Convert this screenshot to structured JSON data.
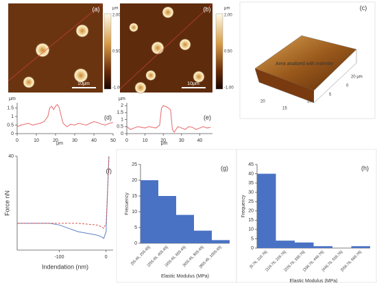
{
  "images": [
    {
      "label": "(a)",
      "unit": "μm",
      "colorbar_ticks": [
        "2.00",
        "0.50",
        "-1.00"
      ],
      "scale_bar": "10μm"
    },
    {
      "label": "(b)",
      "unit": "μm",
      "colorbar_ticks": [
        "2.00",
        "0.50",
        "-1.00"
      ],
      "scale_bar": "10μm"
    },
    {
      "label": "(c)",
      "annotation": "Area analized with indenter",
      "axis_ticks": [
        "20",
        "15",
        "10",
        "5",
        "0",
        "20 μm"
      ]
    }
  ],
  "chart_data": [
    {
      "type": "line",
      "title": "(d)",
      "ylabel": "μm",
      "xlabel": "μm",
      "color": "#e8676a",
      "x": [
        0,
        2,
        4,
        6,
        8,
        10,
        12,
        14,
        16,
        17,
        18,
        19,
        20,
        21,
        22,
        23,
        24,
        26,
        28,
        30,
        32,
        34,
        36,
        38,
        40,
        42,
        44,
        46,
        48,
        50
      ],
      "values": [
        0.4,
        0.5,
        0.55,
        0.6,
        0.5,
        0.55,
        0.6,
        0.7,
        1.0,
        1.5,
        1.6,
        1.4,
        1.6,
        1.7,
        1.5,
        1.0,
        0.6,
        0.4,
        0.55,
        0.5,
        0.6,
        0.55,
        0.5,
        0.6,
        0.7,
        0.65,
        0.55,
        0.5,
        0.6,
        0.65
      ],
      "xlim": [
        0,
        50
      ],
      "xticks": [
        0,
        10,
        20,
        30,
        40,
        50
      ],
      "ylim": [
        0,
        1.8
      ],
      "yticks": [
        0,
        0.5,
        1,
        1.5
      ]
    },
    {
      "type": "line",
      "title": "(e)",
      "ylabel": "μm",
      "xlabel": "μm",
      "color": "#e8676a",
      "x": [
        0,
        2,
        4,
        6,
        8,
        10,
        12,
        14,
        16,
        18,
        19,
        20,
        22,
        24,
        25,
        26,
        28,
        30,
        32,
        34,
        36,
        38,
        40,
        42,
        44,
        46
      ],
      "values": [
        0.5,
        0.3,
        0.4,
        0.5,
        0.45,
        0.4,
        0.5,
        0.45,
        0.4,
        0.6,
        1.8,
        2.0,
        1.9,
        1.7,
        0.3,
        0.1,
        0.5,
        0.4,
        0.3,
        0.5,
        0.45,
        0.3,
        0.4,
        0.5,
        0.4,
        0.45
      ],
      "xlim": [
        0,
        47
      ],
      "xticks": [
        0,
        10,
        20,
        30,
        40
      ],
      "ylim": [
        0,
        2.2
      ],
      "yticks": [
        0,
        0.5,
        1,
        1.5,
        2
      ]
    },
    {
      "type": "line",
      "title": "(f)",
      "ylabel": "Force nN",
      "xlabel": "Indendation (nm)",
      "x": [
        -190,
        -150,
        -120,
        -100,
        -80,
        -60,
        -40,
        -20,
        -10,
        -5,
        0,
        2,
        4,
        6
      ],
      "series": [
        {
          "color": "#5b7fc4",
          "values": [
            0,
            0,
            0,
            -1,
            -3,
            -5,
            -6,
            -7,
            -8,
            -9,
            -5,
            10,
            25,
            40
          ]
        },
        {
          "color": "#d9534f",
          "values": [
            0,
            0,
            0,
            0,
            0,
            0,
            -0.5,
            -1,
            -2,
            -3,
            0,
            12,
            26,
            40
          ]
        }
      ],
      "xlim": [
        -190,
        15
      ],
      "xticks": [
        -100,
        0
      ],
      "ylim": [
        -16,
        40
      ],
      "yticks": [
        40
      ]
    },
    {
      "type": "bar",
      "title": "(g)",
      "ylabel": "Frecuency",
      "xlabel": "Elastic Modulus (MPa)",
      "color": "#4a72c4",
      "categories": [
        "[55.45, 255.45]",
        "[255.45, 455.45]",
        "[455.45, 655.45]",
        "[655.45, 855.45]",
        "[855.45, 1055.45]"
      ],
      "values": [
        20,
        15,
        9,
        4,
        1
      ],
      "ylim": [
        0,
        25
      ],
      "yticks": [
        0,
        5,
        10,
        15,
        20,
        25
      ]
    },
    {
      "type": "bar",
      "title": "(h)",
      "ylabel": "Frequency",
      "xlabel": "Elastic Modulus (MPa)",
      "color": "#4a72c4",
      "categories": [
        "[6.76, 116.76]",
        "[116.76, 226.76]",
        "[226.76, 336.76]",
        "[336.76, 446.76]",
        "[446.76, 556.76]",
        "[556.76, 666.76]"
      ],
      "values": [
        40,
        4,
        3,
        1,
        0,
        1
      ],
      "ylim": [
        0,
        45
      ],
      "yticks": [
        0,
        5,
        10,
        15,
        20,
        25,
        30,
        35,
        40,
        45
      ]
    }
  ]
}
